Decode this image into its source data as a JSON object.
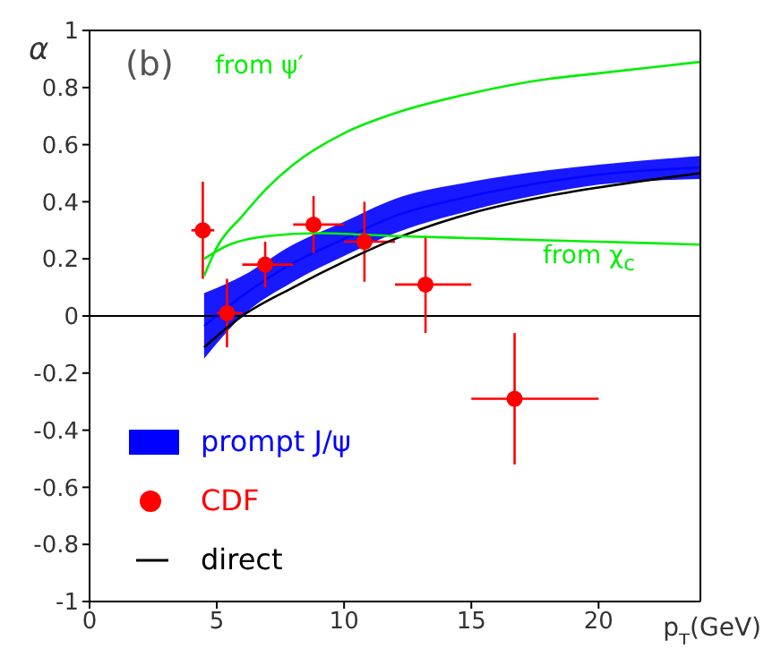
{
  "chart_data": {
    "type": "line",
    "xlabel": "p$_{T}$(GeV)",
    "ylabel": "α",
    "xlim": [
      0,
      24
    ],
    "xticks": [
      0,
      5,
      10,
      15,
      20
    ],
    "ylim": [
      -1,
      1
    ],
    "yticks": [
      -1,
      -0.8,
      -0.6,
      -0.4,
      -0.2,
      0,
      0.2,
      0.4,
      0.6,
      0.8,
      1
    ],
    "legend": "bottom left",
    "annotations": [
      "(b)",
      "from ψ′",
      "from χ$_{c}$"
    ],
    "ref_lines": [
      {
        "axis": "y",
        "value": 0,
        "color": "#000000"
      }
    ],
    "series": [
      {
        "name": "prompt J/ψ",
        "color": "#0000ff",
        "x": [
          4.5,
          6,
          8,
          10,
          12,
          15,
          18,
          20,
          24
        ],
        "values": [
          -0.035,
          0.07,
          0.185,
          0.27,
          0.35,
          0.42,
          0.47,
          0.495,
          0.52
        ],
        "lower": [
          -0.15,
          0.0,
          0.12,
          0.21,
          0.29,
          0.37,
          0.43,
          0.46,
          0.48
        ],
        "upper": [
          0.08,
          0.14,
          0.25,
          0.33,
          0.41,
          0.47,
          0.51,
          0.53,
          0.56
        ]
      },
      {
        "name": "CDF",
        "type": "scatter",
        "color": "#ff0000",
        "marker": "circle",
        "x": [
          4.45,
          5.4,
          6.9,
          8.8,
          10.8,
          13.2,
          16.7
        ],
        "values": [
          0.3,
          0.01,
          0.18,
          0.32,
          0.26,
          0.11,
          -0.29
        ],
        "errors": [
          0.17,
          0.12,
          0.08,
          0.1,
          0.14,
          0.17,
          0.23
        ],
        "xerrors": [
          [
            4.0,
            4.9
          ],
          [
            5.0,
            6.0
          ],
          [
            6.0,
            8.0
          ],
          [
            8.0,
            10.0
          ],
          [
            10.0,
            12.0
          ],
          [
            12.0,
            15.0
          ],
          [
            15.0,
            20.0
          ]
        ]
      },
      {
        "name": "direct",
        "color": "#000000",
        "x": [
          4.5,
          6,
          8,
          10,
          12,
          15,
          18,
          20,
          24
        ],
        "values": [
          -0.11,
          0.0,
          0.1,
          0.19,
          0.27,
          0.36,
          0.42,
          0.45,
          0.5
        ]
      },
      {
        "color": "#00ee00",
        "x": [
          4.5,
          5,
          6,
          7,
          8,
          10,
          12,
          15,
          18,
          20,
          24
        ],
        "values": [
          0.14,
          0.24,
          0.35,
          0.45,
          0.53,
          0.64,
          0.71,
          0.78,
          0.83,
          0.85,
          0.89
        ]
      },
      {
        "color": "#00ee00",
        "x": [
          4.5,
          5.5,
          7,
          9,
          12,
          16,
          20,
          24
        ],
        "values": [
          0.2,
          0.25,
          0.28,
          0.29,
          0.28,
          0.27,
          0.26,
          0.25
        ]
      }
    ]
  }
}
